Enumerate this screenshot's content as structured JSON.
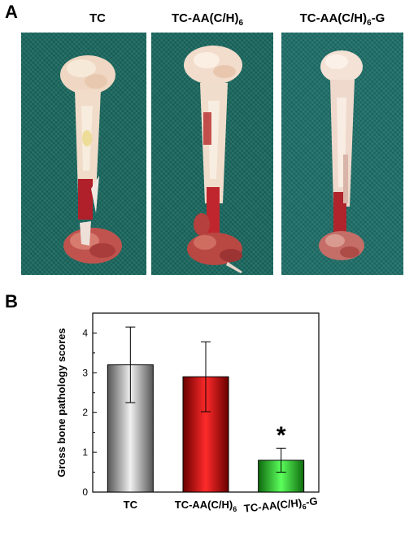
{
  "panel_a": {
    "label": "A",
    "photos": [
      {
        "title": "TC",
        "title_sub": "",
        "title_suffix": ""
      },
      {
        "title": "TC-AA(C/H)",
        "title_sub": "6",
        "title_suffix": ""
      },
      {
        "title": "TC-AA(C/H)",
        "title_sub": "6",
        "title_suffix": "-G"
      }
    ]
  },
  "panel_b": {
    "label": "B"
  },
  "chart_data": {
    "type": "bar",
    "categories": [
      {
        "text": "TC",
        "sub": "",
        "suffix": ""
      },
      {
        "text": "TC-AA(C/H)",
        "sub": "6",
        "suffix": ""
      },
      {
        "text": "TC-AA(C/H)",
        "sub": "6",
        "suffix": "-G"
      }
    ],
    "values": [
      3.2,
      2.9,
      0.8
    ],
    "errors": [
      0.95,
      0.88,
      0.3
    ],
    "bar_colors": [
      "#9a9a9a",
      "#d40000",
      "#22c322"
    ],
    "significance": [
      "",
      "",
      "*"
    ],
    "title": "",
    "xlabel": "",
    "ylabel": "Gross bone pathology scores",
    "ylim": [
      0,
      4.5
    ],
    "yticks": [
      0,
      1,
      2,
      3,
      4
    ],
    "grid": false,
    "legend": "none"
  }
}
